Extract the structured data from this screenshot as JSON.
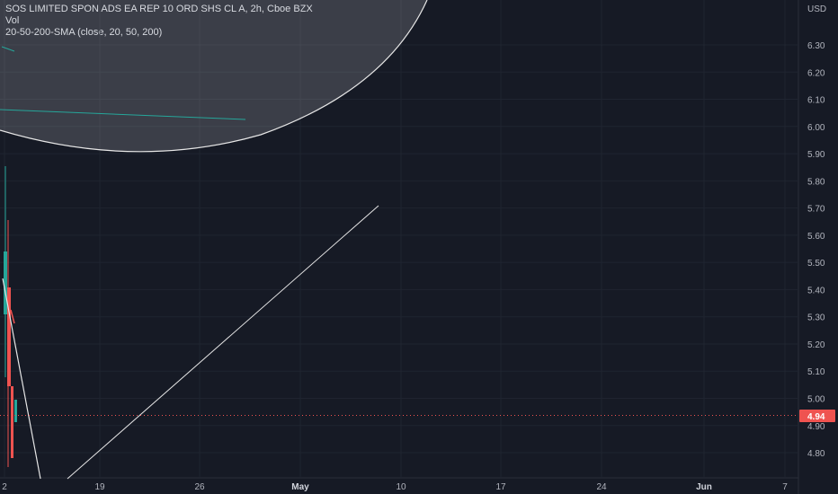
{
  "legend": {
    "title": "SOS LIMITED SPON ADS EA REP 10 ORD SHS CL A, 2h, Cboe BZX",
    "vol": "Vol",
    "sma": "20-50-200-SMA (close, 20, 50, 200)"
  },
  "colors": {
    "background": "#161a25",
    "grid": "#1f2430",
    "up": "#26a69a",
    "down": "#ef5350",
    "drawing": "#e6e6e6",
    "sma": "#26a69a"
  },
  "chart_data": {
    "type": "line",
    "currency": "USD",
    "y_ticks": [
      6.3,
      6.2,
      6.1,
      6.0,
      5.9,
      5.8,
      5.7,
      5.6,
      5.5,
      5.4,
      5.3,
      5.2,
      5.1,
      5.0,
      4.9,
      4.8
    ],
    "x_ticks": [
      "2",
      "19",
      "26",
      "May",
      "10",
      "17",
      "24",
      "Jun",
      "7"
    ],
    "last_price": 4.94,
    "drawings": {
      "trend_line": {
        "from": {
          "x": "19",
          "y": 4.72
        },
        "to": {
          "x": "10",
          "y": 5.72
        }
      },
      "ellipse": "highlighted region in upper-left",
      "descending_line": "from candles near 5.40 down to below 4.80"
    },
    "grid": true
  }
}
